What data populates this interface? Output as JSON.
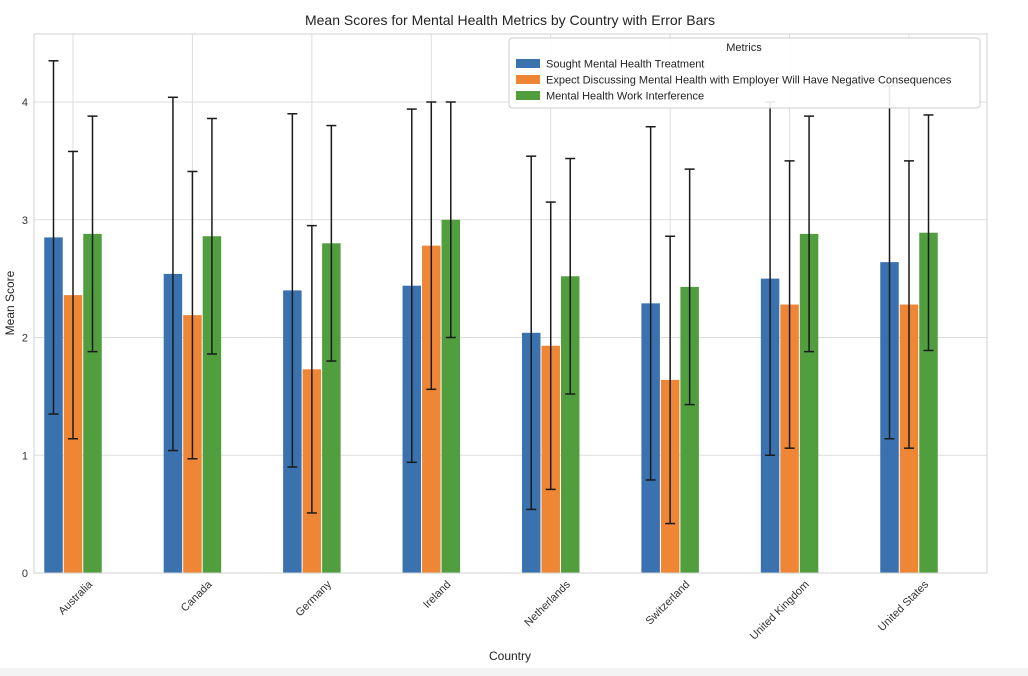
{
  "chart_data": {
    "type": "bar",
    "title": "Mean Scores for Mental Health Metrics by Country with Error Bars",
    "xlabel": "Country",
    "ylabel": "Mean Score",
    "categories": [
      "Australia",
      "Canada",
      "Germany",
      "Ireland",
      "Netherlands",
      "Switzerland",
      "United Kingdom",
      "United States"
    ],
    "yticks": [
      "0",
      "1",
      "2",
      "3",
      "4"
    ],
    "ylim": [
      0,
      4.58
    ],
    "grid": true,
    "legend": {
      "title": "Metrics",
      "placement": "top-right"
    },
    "series": [
      {
        "name": "Sought Mental Health Treatment",
        "color": "#3a72b0",
        "values": [
          2.85,
          2.54,
          2.4,
          2.44,
          2.04,
          2.29,
          2.5,
          2.64
        ],
        "errors": [
          1.5,
          1.5,
          1.5,
          1.5,
          1.5,
          1.5,
          1.5,
          1.5
        ]
      },
      {
        "name": "Expect Discussing Mental Health with Employer Will Have Negative Consequences",
        "color": "#ef8636",
        "values": [
          2.36,
          2.19,
          1.73,
          2.78,
          1.93,
          1.64,
          2.28,
          2.28
        ],
        "errors": [
          1.22,
          1.22,
          1.22,
          1.22,
          1.22,
          1.22,
          1.22,
          1.22
        ]
      },
      {
        "name": "Mental Health Work Interference",
        "color": "#519e3e",
        "values": [
          2.88,
          2.86,
          2.8,
          3.0,
          2.52,
          2.43,
          2.88,
          2.89
        ],
        "errors": [
          1.0,
          1.0,
          1.0,
          1.0,
          1.0,
          1.0,
          1.0,
          1.0
        ]
      }
    ]
  }
}
